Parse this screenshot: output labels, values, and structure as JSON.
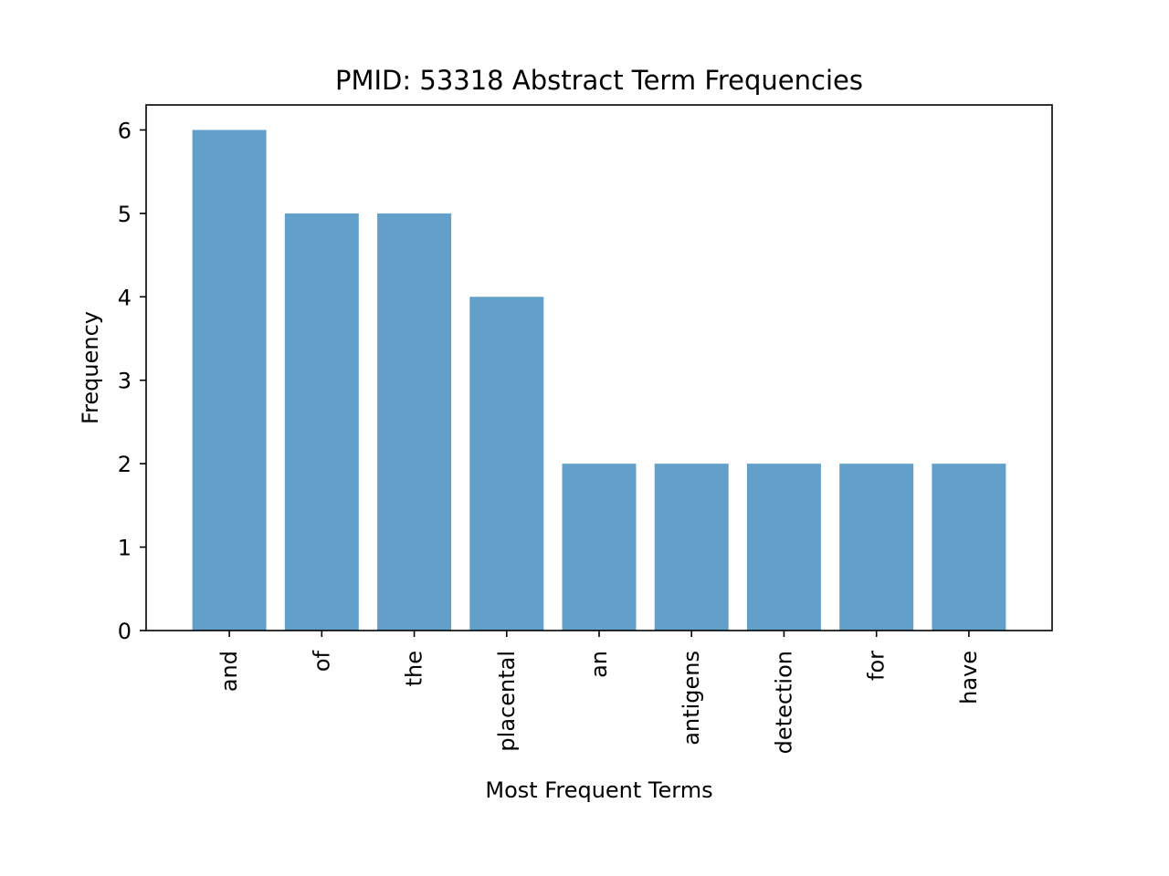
{
  "chart_data": {
    "type": "bar",
    "title": "PMID: 53318 Abstract Term Frequencies",
    "xlabel": "Most Frequent Terms",
    "ylabel": "Frequency",
    "categories": [
      "and",
      "of",
      "the",
      "placental",
      "an",
      "antigens",
      "detection",
      "for",
      "have"
    ],
    "values": [
      6,
      5,
      5,
      4,
      2,
      2,
      2,
      2,
      2
    ],
    "ylim": [
      0,
      6.3
    ],
    "yticks": [
      "0",
      "1",
      "2",
      "3",
      "4",
      "5",
      "6"
    ],
    "grid": false,
    "legend": "none",
    "bar_color": "#1f77b4",
    "bar_opacity": 0.7
  }
}
